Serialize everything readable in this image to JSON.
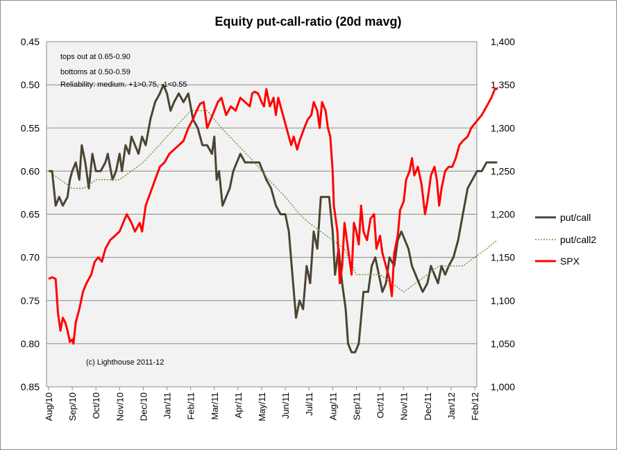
{
  "chart_data": {
    "type": "line",
    "title": "Equity put-call-ratio (20d mavg)",
    "x": [
      "Aug/10",
      "Sep/10",
      "Oct/10",
      "Nov/10",
      "Dec/10",
      "Jan/11",
      "Feb/11",
      "Mar/11",
      "Apr/11",
      "May/11",
      "Jun/11",
      "Jul/11",
      "Aug/11",
      "Sep/11",
      "Oct/11",
      "Nov/11",
      "Dec/11",
      "Jan/12",
      "Feb/12"
    ],
    "y_left": {
      "ticks": [
        "0.45",
        "0.50",
        "0.55",
        "0.60",
        "0.65",
        "0.70",
        "0.75",
        "0.80",
        "0.85"
      ],
      "min": 0.45,
      "max": 0.85,
      "inverted": true
    },
    "y_right": {
      "ticks": [
        "1,400",
        "1,350",
        "1,300",
        "1,250",
        "1,200",
        "1,150",
        "1,100",
        "1,050",
        "1,000"
      ],
      "min": 1000,
      "max": 1400
    },
    "grid": "horizontal",
    "legend_position": "right",
    "annotations": [
      "tops out at 0.65-0.90",
      "bottoms at 0.50-0.59",
      "Reliability: medium. +1>0.75, -1<0.55"
    ],
    "credit": "(c) Lighthouse 2011-12",
    "series": [
      {
        "name": "put/call",
        "axis": "left",
        "color": "#4a4431",
        "style": "solid",
        "points": [
          [
            0,
            0.6
          ],
          [
            0.15,
            0.6
          ],
          [
            0.3,
            0.64
          ],
          [
            0.45,
            0.63
          ],
          [
            0.6,
            0.64
          ],
          [
            0.8,
            0.63
          ],
          [
            0.9,
            0.61
          ],
          [
            1.0,
            0.6
          ],
          [
            1.15,
            0.59
          ],
          [
            1.3,
            0.61
          ],
          [
            1.4,
            0.57
          ],
          [
            1.55,
            0.59
          ],
          [
            1.7,
            0.62
          ],
          [
            1.85,
            0.58
          ],
          [
            2.0,
            0.6
          ],
          [
            2.2,
            0.6
          ],
          [
            2.4,
            0.59
          ],
          [
            2.5,
            0.58
          ],
          [
            2.7,
            0.61
          ],
          [
            2.85,
            0.6
          ],
          [
            3.0,
            0.58
          ],
          [
            3.1,
            0.6
          ],
          [
            3.25,
            0.57
          ],
          [
            3.4,
            0.58
          ],
          [
            3.5,
            0.56
          ],
          [
            3.65,
            0.57
          ],
          [
            3.8,
            0.58
          ],
          [
            3.95,
            0.56
          ],
          [
            4.1,
            0.57
          ],
          [
            4.3,
            0.54
          ],
          [
            4.5,
            0.52
          ],
          [
            4.7,
            0.51
          ],
          [
            4.85,
            0.5
          ],
          [
            5.0,
            0.51
          ],
          [
            5.15,
            0.53
          ],
          [
            5.3,
            0.52
          ],
          [
            5.5,
            0.51
          ],
          [
            5.7,
            0.52
          ],
          [
            5.9,
            0.51
          ],
          [
            6.1,
            0.54
          ],
          [
            6.3,
            0.55
          ],
          [
            6.5,
            0.57
          ],
          [
            6.7,
            0.57
          ],
          [
            6.9,
            0.58
          ],
          [
            7.0,
            0.56
          ],
          [
            7.1,
            0.61
          ],
          [
            7.2,
            0.6
          ],
          [
            7.35,
            0.64
          ],
          [
            7.5,
            0.63
          ],
          [
            7.65,
            0.62
          ],
          [
            7.8,
            0.6
          ],
          [
            7.95,
            0.59
          ],
          [
            8.1,
            0.58
          ],
          [
            8.3,
            0.59
          ],
          [
            8.5,
            0.59
          ],
          [
            8.7,
            0.59
          ],
          [
            8.9,
            0.59
          ],
          [
            9.05,
            0.6
          ],
          [
            9.2,
            0.61
          ],
          [
            9.4,
            0.62
          ],
          [
            9.6,
            0.64
          ],
          [
            9.8,
            0.65
          ],
          [
            10.0,
            0.65
          ],
          [
            10.15,
            0.67
          ],
          [
            10.3,
            0.72
          ],
          [
            10.45,
            0.77
          ],
          [
            10.6,
            0.75
          ],
          [
            10.75,
            0.76
          ],
          [
            10.9,
            0.71
          ],
          [
            11.05,
            0.73
          ],
          [
            11.2,
            0.67
          ],
          [
            11.35,
            0.69
          ],
          [
            11.5,
            0.63
          ],
          [
            11.7,
            0.63
          ],
          [
            11.85,
            0.63
          ],
          [
            12.0,
            0.67
          ],
          [
            12.1,
            0.72
          ],
          [
            12.25,
            0.69
          ],
          [
            12.4,
            0.73
          ],
          [
            12.55,
            0.76
          ],
          [
            12.65,
            0.8
          ],
          [
            12.8,
            0.81
          ],
          [
            12.95,
            0.81
          ],
          [
            13.1,
            0.8
          ],
          [
            13.2,
            0.77
          ],
          [
            13.3,
            0.74
          ],
          [
            13.5,
            0.74
          ],
          [
            13.65,
            0.71
          ],
          [
            13.8,
            0.7
          ],
          [
            13.95,
            0.72
          ],
          [
            14.1,
            0.74
          ],
          [
            14.25,
            0.73
          ],
          [
            14.4,
            0.7
          ],
          [
            14.6,
            0.71
          ],
          [
            14.75,
            0.68
          ],
          [
            14.9,
            0.67
          ],
          [
            15.05,
            0.68
          ],
          [
            15.2,
            0.69
          ],
          [
            15.35,
            0.71
          ],
          [
            15.5,
            0.72
          ],
          [
            15.65,
            0.73
          ],
          [
            15.8,
            0.74
          ],
          [
            16.0,
            0.73
          ],
          [
            16.15,
            0.71
          ],
          [
            16.3,
            0.72
          ],
          [
            16.45,
            0.73
          ],
          [
            16.6,
            0.71
          ],
          [
            16.75,
            0.72
          ],
          [
            16.9,
            0.71
          ],
          [
            17.1,
            0.7
          ],
          [
            17.3,
            0.68
          ],
          [
            17.5,
            0.65
          ],
          [
            17.7,
            0.62
          ],
          [
            17.9,
            0.61
          ],
          [
            18.1,
            0.6
          ],
          [
            18.3,
            0.6
          ],
          [
            18.5,
            0.59
          ],
          [
            18.7,
            0.59
          ],
          [
            18.9,
            0.59
          ],
          [
            18.95,
            0.59
          ]
        ]
      },
      {
        "name": "put/call2",
        "axis": "left",
        "color": "#77933c",
        "style": "dotted",
        "points": [
          [
            0,
            0.6
          ],
          [
            0.5,
            0.61
          ],
          [
            1.0,
            0.62
          ],
          [
            1.5,
            0.62
          ],
          [
            2.0,
            0.61
          ],
          [
            3.0,
            0.61
          ],
          [
            4.0,
            0.59
          ],
          [
            5.0,
            0.56
          ],
          [
            6.0,
            0.53
          ],
          [
            6.7,
            0.53
          ],
          [
            7.3,
            0.55
          ],
          [
            8.0,
            0.57
          ],
          [
            8.7,
            0.59
          ],
          [
            9.3,
            0.61
          ],
          [
            10.0,
            0.63
          ],
          [
            10.6,
            0.65
          ],
          [
            11.0,
            0.66
          ],
          [
            11.5,
            0.67
          ],
          [
            12.0,
            0.68
          ],
          [
            12.5,
            0.69
          ],
          [
            13.0,
            0.72
          ],
          [
            13.5,
            0.72
          ],
          [
            14.0,
            0.72
          ],
          [
            14.5,
            0.73
          ],
          [
            15.0,
            0.74
          ],
          [
            15.5,
            0.73
          ],
          [
            16.0,
            0.72
          ],
          [
            16.5,
            0.71
          ],
          [
            17.0,
            0.71
          ],
          [
            17.5,
            0.71
          ],
          [
            18.0,
            0.7
          ],
          [
            18.5,
            0.69
          ],
          [
            18.95,
            0.68
          ]
        ]
      },
      {
        "name": "SPX",
        "axis": "right",
        "color": "#ff0000",
        "style": "solid",
        "points": [
          [
            0,
            1125
          ],
          [
            0.15,
            1127
          ],
          [
            0.3,
            1125
          ],
          [
            0.4,
            1085
          ],
          [
            0.5,
            1065
          ],
          [
            0.6,
            1080
          ],
          [
            0.7,
            1075
          ],
          [
            0.8,
            1065
          ],
          [
            0.9,
            1052
          ],
          [
            1.0,
            1055
          ],
          [
            1.05,
            1050
          ],
          [
            1.15,
            1075
          ],
          [
            1.3,
            1090
          ],
          [
            1.45,
            1110
          ],
          [
            1.6,
            1120
          ],
          [
            1.8,
            1130
          ],
          [
            1.95,
            1145
          ],
          [
            2.1,
            1150
          ],
          [
            2.25,
            1145
          ],
          [
            2.4,
            1160
          ],
          [
            2.6,
            1170
          ],
          [
            2.8,
            1175
          ],
          [
            3.0,
            1180
          ],
          [
            3.15,
            1190
          ],
          [
            3.3,
            1200
          ],
          [
            3.5,
            1190
          ],
          [
            3.65,
            1180
          ],
          [
            3.85,
            1190
          ],
          [
            3.95,
            1180
          ],
          [
            4.1,
            1210
          ],
          [
            4.3,
            1225
          ],
          [
            4.5,
            1240
          ],
          [
            4.7,
            1255
          ],
          [
            4.9,
            1260
          ],
          [
            5.1,
            1270
          ],
          [
            5.3,
            1275
          ],
          [
            5.5,
            1280
          ],
          [
            5.7,
            1285
          ],
          [
            5.9,
            1300
          ],
          [
            6.1,
            1310
          ],
          [
            6.25,
            1320
          ],
          [
            6.4,
            1328
          ],
          [
            6.55,
            1330
          ],
          [
            6.7,
            1300
          ],
          [
            6.85,
            1310
          ],
          [
            7.0,
            1320
          ],
          [
            7.15,
            1330
          ],
          [
            7.3,
            1335
          ],
          [
            7.5,
            1315
          ],
          [
            7.7,
            1325
          ],
          [
            7.9,
            1320
          ],
          [
            8.1,
            1335
          ],
          [
            8.3,
            1330
          ],
          [
            8.5,
            1325
          ],
          [
            8.6,
            1340
          ],
          [
            8.7,
            1342
          ],
          [
            8.85,
            1340
          ],
          [
            9.0,
            1330
          ],
          [
            9.1,
            1325
          ],
          [
            9.2,
            1345
          ],
          [
            9.35,
            1325
          ],
          [
            9.5,
            1335
          ],
          [
            9.6,
            1315
          ],
          [
            9.7,
            1335
          ],
          [
            9.8,
            1325
          ],
          [
            9.95,
            1310
          ],
          [
            10.1,
            1295
          ],
          [
            10.25,
            1280
          ],
          [
            10.35,
            1290
          ],
          [
            10.5,
            1275
          ],
          [
            10.6,
            1285
          ],
          [
            10.8,
            1300
          ],
          [
            10.95,
            1310
          ],
          [
            11.1,
            1315
          ],
          [
            11.2,
            1330
          ],
          [
            11.35,
            1320
          ],
          [
            11.45,
            1300
          ],
          [
            11.55,
            1330
          ],
          [
            11.7,
            1320
          ],
          [
            11.8,
            1300
          ],
          [
            11.9,
            1290
          ],
          [
            12.0,
            1250
          ],
          [
            12.05,
            1210
          ],
          [
            12.2,
            1180
          ],
          [
            12.3,
            1120
          ],
          [
            12.4,
            1140
          ],
          [
            12.5,
            1190
          ],
          [
            12.6,
            1170
          ],
          [
            12.7,
            1150
          ],
          [
            12.8,
            1130
          ],
          [
            12.9,
            1190
          ],
          [
            13.0,
            1180
          ],
          [
            13.1,
            1165
          ],
          [
            13.2,
            1210
          ],
          [
            13.3,
            1180
          ],
          [
            13.45,
            1170
          ],
          [
            13.6,
            1195
          ],
          [
            13.75,
            1200
          ],
          [
            13.85,
            1160
          ],
          [
            14.0,
            1175
          ],
          [
            14.1,
            1155
          ],
          [
            14.25,
            1140
          ],
          [
            14.4,
            1125
          ],
          [
            14.5,
            1105
          ],
          [
            14.6,
            1155
          ],
          [
            14.75,
            1175
          ],
          [
            14.85,
            1205
          ],
          [
            15.0,
            1215
          ],
          [
            15.1,
            1240
          ],
          [
            15.25,
            1250
          ],
          [
            15.35,
            1265
          ],
          [
            15.45,
            1245
          ],
          [
            15.6,
            1255
          ],
          [
            15.75,
            1235
          ],
          [
            15.9,
            1200
          ],
          [
            16.0,
            1215
          ],
          [
            16.15,
            1245
          ],
          [
            16.3,
            1255
          ],
          [
            16.4,
            1240
          ],
          [
            16.5,
            1210
          ],
          [
            16.6,
            1230
          ],
          [
            16.75,
            1250
          ],
          [
            16.9,
            1255
          ],
          [
            17.05,
            1255
          ],
          [
            17.2,
            1265
          ],
          [
            17.35,
            1280
          ],
          [
            17.5,
            1285
          ],
          [
            17.7,
            1290
          ],
          [
            17.85,
            1300
          ],
          [
            18.0,
            1305
          ],
          [
            18.15,
            1310
          ],
          [
            18.3,
            1315
          ],
          [
            18.5,
            1325
          ],
          [
            18.7,
            1335
          ],
          [
            18.85,
            1345
          ],
          [
            18.95,
            1345
          ]
        ]
      }
    ]
  }
}
